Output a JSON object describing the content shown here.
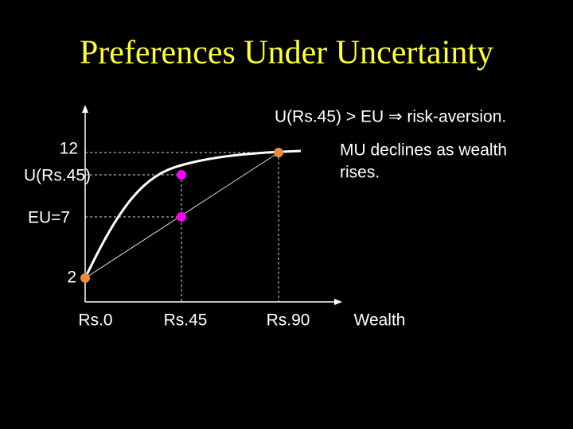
{
  "title": "Preferences Under Uncertainty",
  "annotation": "U(Rs.45) > EU ⇒ risk-aversion.",
  "note": [
    "MU declines as wealth",
    "rises."
  ],
  "y_labels": [
    "12",
    "U(Rs.45)",
    "EU=7",
    "2"
  ],
  "x_labels": [
    "Rs.0",
    "Rs.45",
    "Rs.90",
    "Wealth"
  ]
}
